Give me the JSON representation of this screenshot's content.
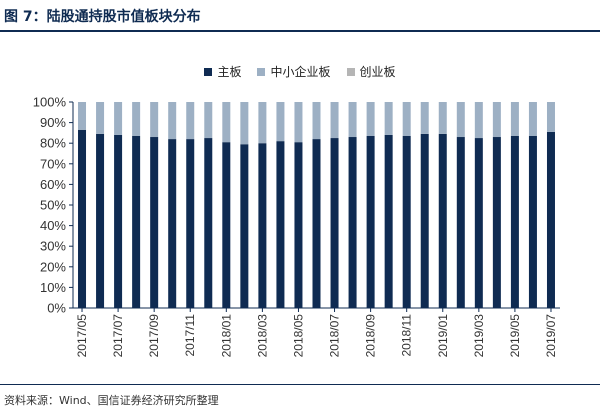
{
  "header": {
    "title": "图 7：陆股通持股市值板块分布"
  },
  "footer": {
    "source": "资料来源：Wind、国信证券经济研究所整理"
  },
  "colors": {
    "main": "#0f2b52",
    "sme": "#9db0c4",
    "chinext": "#b5b5b5",
    "frame": "#0f2b52"
  },
  "chart_data": {
    "type": "bar",
    "stacked": true,
    "categories": [
      "2017/05",
      "2017/06",
      "2017/07",
      "2017/08",
      "2017/09",
      "2017/10",
      "2017/11",
      "2017/12",
      "2018/01",
      "2018/02",
      "2018/03",
      "2018/04",
      "2018/05",
      "2018/06",
      "2018/07",
      "2018/08",
      "2018/09",
      "2018/10",
      "2018/11",
      "2018/12",
      "2019/01",
      "2019/02",
      "2019/03",
      "2019/04",
      "2019/05",
      "2019/06",
      "2019/07"
    ],
    "x_tick_labels": [
      "2017/05",
      "2017/07",
      "2017/09",
      "2017/11",
      "2018/01",
      "2018/03",
      "2018/05",
      "2018/07",
      "2018/09",
      "2018/11",
      "2019/01",
      "2019/03",
      "2019/05",
      "2019/07"
    ],
    "series": [
      {
        "name": "主板",
        "values": [
          86.5,
          84.5,
          84,
          83.5,
          83,
          82,
          82,
          82.5,
          80.5,
          79.5,
          80,
          81,
          80.5,
          82,
          82.5,
          83,
          83.5,
          84,
          83.5,
          84.5,
          84.5,
          83,
          82.5,
          83,
          83.5,
          83.5,
          85.5
        ]
      },
      {
        "name": "中小企业板",
        "values": [
          13.5,
          15.5,
          16,
          16.5,
          17,
          18,
          18,
          17.5,
          19.5,
          20.5,
          20,
          19,
          19.5,
          18,
          17.5,
          17,
          16.5,
          16,
          16.5,
          15.5,
          15.5,
          17,
          17.5,
          17,
          16.5,
          16.5,
          14.5
        ]
      },
      {
        "name": "创业板",
        "values": [
          0,
          0,
          0,
          0,
          0,
          0,
          0,
          0,
          0,
          0,
          0,
          0,
          0,
          0,
          0,
          0,
          0,
          0,
          0,
          0,
          0,
          0,
          0,
          0,
          0,
          0,
          0
        ]
      }
    ],
    "y_tick_labels": [
      "0%",
      "10%",
      "20%",
      "30%",
      "40%",
      "50%",
      "60%",
      "70%",
      "80%",
      "90%",
      "100%"
    ],
    "ylim": [
      0,
      100
    ],
    "grid": false,
    "legend_position": "top-center"
  }
}
